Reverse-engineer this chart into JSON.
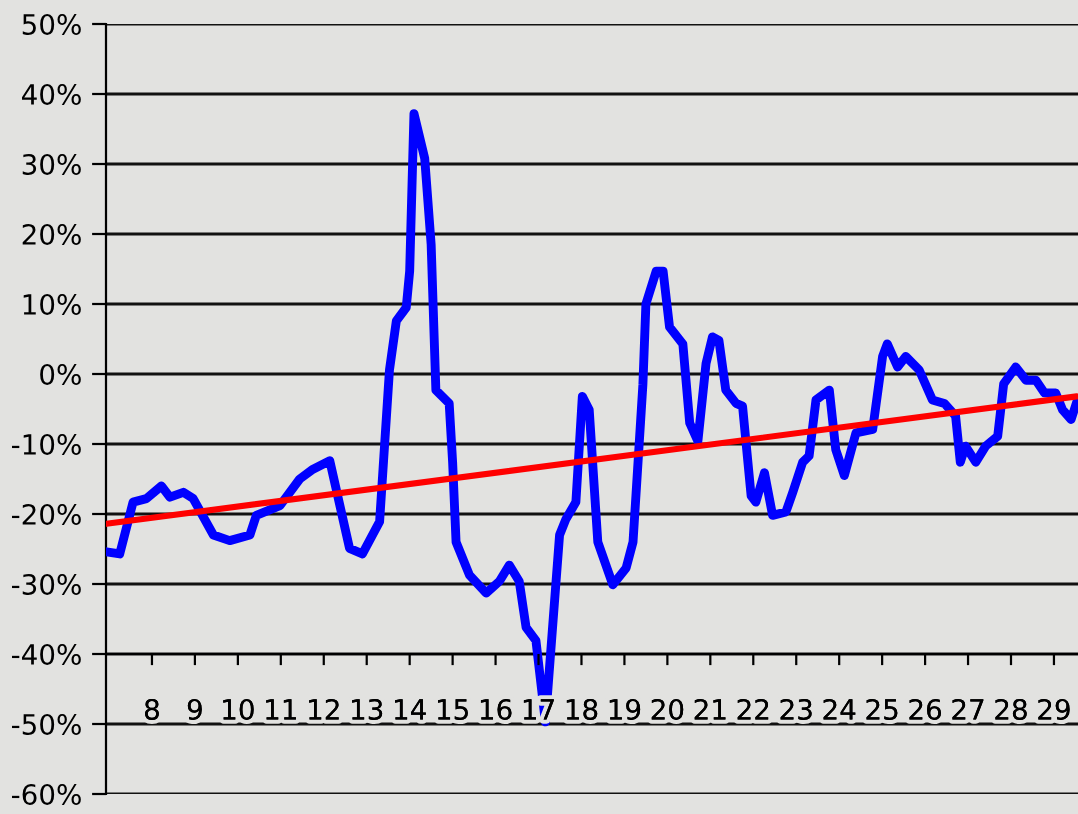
{
  "chart_data": {
    "type": "line",
    "x": [
      6.94,
      7.25,
      7.56,
      7.87,
      8.22,
      8.42,
      8.73,
      8.96,
      9.43,
      9.81,
      10.28,
      10.43,
      10.98,
      11.44,
      11.75,
      12.14,
      12.6,
      12.9,
      13.3,
      13.53,
      13.69,
      13.92,
      14.0,
      14.1,
      14.35,
      14.5,
      14.61,
      14.92,
      15.0,
      15.08,
      15.39,
      15.78,
      16.09,
      16.32,
      16.55,
      16.71,
      16.94,
      17.16,
      17.49,
      17.64,
      17.87,
      18.02,
      18.18,
      18.38,
      18.73,
      19.04,
      19.2,
      19.43,
      19.5,
      19.74,
      19.9,
      20.05,
      20.36,
      20.52,
      20.71,
      20.9,
      21.05,
      21.2,
      21.36,
      21.6,
      21.75,
      21.95,
      22.06,
      22.26,
      22.45,
      22.76,
      22.92,
      23.15,
      23.3,
      23.46,
      23.77,
      23.92,
      24.12,
      24.39,
      24.78,
      25.01,
      25.12,
      25.36,
      25.55,
      25.86,
      26.17,
      26.45,
      26.71,
      26.82,
      26.94,
      27.18,
      27.41,
      27.69,
      27.83,
      28.11,
      28.35,
      28.58,
      28.78,
      29.04,
      29.2,
      29.4,
      29.53
    ],
    "series": [
      {
        "color": "#0000ff",
        "values": [
          -25.4,
          -25.7,
          -18.3,
          -17.8,
          -16,
          -17.6,
          -16.9,
          -17.8,
          -23,
          -23.8,
          -23,
          -20.2,
          -18.8,
          -15,
          -13.6,
          -12.4,
          -24.9,
          -25.7,
          -21.1,
          0.6,
          7.6,
          9.5,
          14.7,
          37.2,
          30.8,
          18.5,
          -2.3,
          -4.2,
          -12.6,
          -24,
          -28.7,
          -31.3,
          -29.6,
          -27.3,
          -29.6,
          -36.2,
          -38.1,
          -49.7,
          -23,
          -20.7,
          -18.3,
          -3.2,
          -5.1,
          -24,
          -30.1,
          -27.7,
          -24,
          -1.5,
          10,
          14.7,
          14.7,
          6.7,
          4.3,
          -7,
          -9.6,
          1.5,
          5.3,
          4.8,
          -2.3,
          -4.2,
          -4.6,
          -17.4,
          -18.3,
          -14.1,
          -20.2,
          -19.7,
          -16.9,
          -12.6,
          -11.7,
          -3.7,
          -2.3,
          -10.8,
          -14.5,
          -8.4,
          -7.9,
          2.5,
          4.3,
          1,
          2.5,
          0.6,
          -3.7,
          -4.2,
          -6,
          -12.6,
          -10.3,
          -12.6,
          -10.3,
          -8.9,
          -1.4,
          1,
          -0.9,
          -0.9,
          -2.7,
          -2.7,
          -5.1,
          -6.5,
          -4
        ]
      },
      {
        "color": "#ff0000",
        "x": [
          6.94,
          29.53
        ],
        "values": [
          -21.4,
          -3.2
        ]
      }
    ],
    "xlim": [
      6.93,
      29.56
    ],
    "xticks": [
      8,
      9,
      10,
      11,
      12,
      13,
      14,
      15,
      16,
      17,
      18,
      19,
      20,
      21,
      22,
      23,
      24,
      25,
      26,
      27,
      28,
      29
    ],
    "ylim": [
      -60,
      50
    ],
    "yticks": [
      {
        "value": -60,
        "label": "-60%"
      },
      {
        "value": -50,
        "label": "-50%"
      },
      {
        "value": -40,
        "label": "-40%"
      },
      {
        "value": -30,
        "label": "-30%"
      },
      {
        "value": -20,
        "label": "-20%"
      },
      {
        "value": -10,
        "label": "-10%"
      },
      {
        "value": 0,
        "label": "0%"
      },
      {
        "value": 10,
        "label": "10%"
      },
      {
        "value": 20,
        "label": "20%"
      },
      {
        "value": 30,
        "label": "30%"
      },
      {
        "value": 40,
        "label": "40%"
      },
      {
        "value": 50,
        "label": "50%"
      }
    ],
    "grid": "y",
    "marker": "none",
    "line_style": "solid"
  }
}
